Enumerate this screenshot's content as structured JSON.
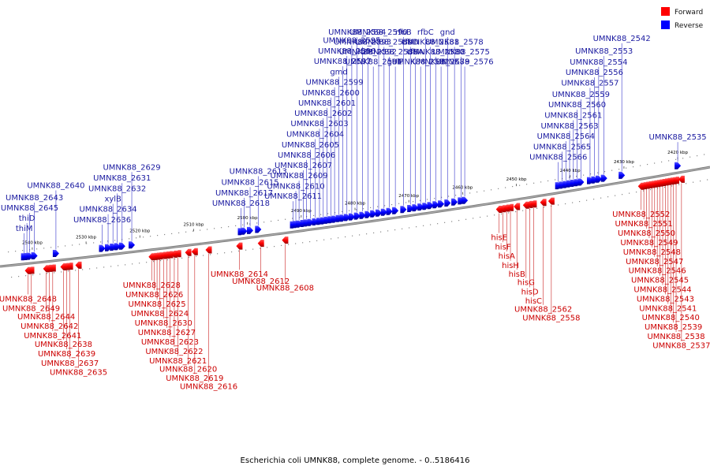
{
  "caption": "Escherichia coli UMNK88, complete genome. - 0..5186416",
  "legend": {
    "forward": {
      "label": "Forward",
      "color": "#ff0000"
    },
    "reverse": {
      "label": "Reverse",
      "color": "#0000ff"
    }
  },
  "ticks": [
    {
      "label": "2540 kbp",
      "pos": 2540
    },
    {
      "label": "2530 kbp",
      "pos": 2530
    },
    {
      "label": "2520 kbp",
      "pos": 2520
    },
    {
      "label": "2510 kbp",
      "pos": 2510
    },
    {
      "label": "2500 kbp",
      "pos": 2500
    },
    {
      "label": "2490 kbp",
      "pos": 2490
    },
    {
      "label": "2480 kbp",
      "pos": 2480
    },
    {
      "label": "2470 kbp",
      "pos": 2470
    },
    {
      "label": "2460 kbp",
      "pos": 2460
    },
    {
      "label": "2450 kbp",
      "pos": 2450
    },
    {
      "label": "2440 kbp",
      "pos": 2440
    },
    {
      "label": "2430 kbp",
      "pos": 2430
    },
    {
      "label": "2420 kbp",
      "pos": 2420
    }
  ],
  "reverse_genes": [
    {
      "name": "thiM",
      "pos": 2541.5
    },
    {
      "name": "thiD",
      "pos": 2541.0
    },
    {
      "name": "UMNK88_2645",
      "pos": 2540.5
    },
    {
      "name": "UMNK88_2643",
      "pos": 2539.6
    },
    {
      "name": "UMNK88_2640",
      "pos": 2535.6
    },
    {
      "name": "UMNK88_2636",
      "pos": 2527.0
    },
    {
      "name": "UMNK88_2634",
      "pos": 2525.9
    },
    {
      "name": "xylB",
      "pos": 2525.0
    },
    {
      "name": "UMNK88_2632",
      "pos": 2524.2
    },
    {
      "name": "UMNK88_2631",
      "pos": 2523.3
    },
    {
      "name": "UMNK88_2629",
      "pos": 2521.5
    },
    {
      "name": "UMNK88_2618",
      "pos": 2501.2
    },
    {
      "name": "UMNK88_2617",
      "pos": 2500.6
    },
    {
      "name": "UMNK88_2615",
      "pos": 2499.5
    },
    {
      "name": "UMNK88_2613",
      "pos": 2498.0
    },
    {
      "name": "UMNK88_2611",
      "pos": 2491.5
    },
    {
      "name": "UMNK88_2610",
      "pos": 2491.0
    },
    {
      "name": "UMNK88_2609",
      "pos": 2490.4
    },
    {
      "name": "UMNK88_2607",
      "pos": 2489.6
    },
    {
      "name": "UMNK88_2606",
      "pos": 2489.0
    },
    {
      "name": "UMNK88_2605",
      "pos": 2488.3
    },
    {
      "name": "UMNK88_2604",
      "pos": 2487.4
    },
    {
      "name": "UMNK88_2603",
      "pos": 2486.6
    },
    {
      "name": "UMNK88_2602",
      "pos": 2485.9
    },
    {
      "name": "UMNK88_2601",
      "pos": 2485.2
    },
    {
      "name": "UMNK88_2600",
      "pos": 2484.5
    },
    {
      "name": "UMNK88_2599",
      "pos": 2483.8
    },
    {
      "name": "gmd",
      "pos": 2483.0
    },
    {
      "name": "UMNK88_2597",
      "pos": 2482.3
    },
    {
      "name": "UMNK88_2596",
      "pos": 2481.5
    },
    {
      "name": "UMNK88_2595",
      "pos": 2480.6
    },
    {
      "name": "UMNK88_2594",
      "pos": 2479.6
    },
    {
      "name": "UMNK88_2593",
      "pos": 2478.6
    },
    {
      "name": "UMNK88_2592",
      "pos": 2477.6
    },
    {
      "name": "UMNK88_2591",
      "pos": 2476.6
    },
    {
      "name": "UMNK88_2590",
      "pos": 2475.6
    },
    {
      "name": "UMNK88_2589",
      "pos": 2474.6
    },
    {
      "name": "UMNK88_2588",
      "pos": 2473.6
    },
    {
      "name": "galF",
      "pos": 2472.5
    },
    {
      "name": "rfbB",
      "pos": 2471.0
    },
    {
      "name": "rfbD",
      "pos": 2469.7
    },
    {
      "name": "rfbA",
      "pos": 2468.8
    },
    {
      "name": "UMNK88_2582",
      "pos": 2467.8
    },
    {
      "name": "rfbC",
      "pos": 2466.9
    },
    {
      "name": "UMNK88_2581",
      "pos": 2466.0
    },
    {
      "name": "UMNK88_2580",
      "pos": 2465.0
    },
    {
      "name": "UMNK88_2579",
      "pos": 2464.0
    },
    {
      "name": "gnd",
      "pos": 2462.8
    },
    {
      "name": "UMNK88_2578",
      "pos": 2461.5
    },
    {
      "name": "UMNK88_2575",
      "pos": 2460.3
    },
    {
      "name": "UMNK88_2576",
      "pos": 2459.6
    },
    {
      "name": "UMNK88_2566",
      "pos": 2442.2
    },
    {
      "name": "UMNK88_2565",
      "pos": 2441.5
    },
    {
      "name": "UMNK88_2564",
      "pos": 2440.8
    },
    {
      "name": "UMNK88_2563",
      "pos": 2440.1
    },
    {
      "name": "UMNK88_2561",
      "pos": 2439.4
    },
    {
      "name": "UMNK88_2560",
      "pos": 2438.7
    },
    {
      "name": "UMNK88_2559",
      "pos": 2438.0
    },
    {
      "name": "UMNK88_2557",
      "pos": 2436.3
    },
    {
      "name": "UMNK88_2556",
      "pos": 2435.5
    },
    {
      "name": "UMNK88_2554",
      "pos": 2434.7
    },
    {
      "name": "UMNK88_2553",
      "pos": 2433.7
    },
    {
      "name": "UMNK88_2542",
      "pos": 2430.4
    },
    {
      "name": "UMNK88_2535",
      "pos": 2420.0
    }
  ],
  "forward_genes": [
    {
      "name": "UMNK88_2648",
      "pos": 2540.8
    },
    {
      "name": "UMNK88_2649",
      "pos": 2540.2
    },
    {
      "name": "UMNK88_2644",
      "pos": 2537.4
    },
    {
      "name": "UMNK88_2642",
      "pos": 2536.8
    },
    {
      "name": "UMNK88_2641",
      "pos": 2536.2
    },
    {
      "name": "UMNK88_2638",
      "pos": 2534.2
    },
    {
      "name": "UMNK88_2639",
      "pos": 2533.6
    },
    {
      "name": "UMNK88_2637",
      "pos": 2533.0
    },
    {
      "name": "UMNK88_2635",
      "pos": 2531.4
    },
    {
      "name": "UMNK88_2628",
      "pos": 2517.8
    },
    {
      "name": "UMNK88_2626",
      "pos": 2517.3
    },
    {
      "name": "UMNK88_2625",
      "pos": 2516.8
    },
    {
      "name": "UMNK88_2624",
      "pos": 2516.3
    },
    {
      "name": "UMNK88_2630",
      "pos": 2515.6
    },
    {
      "name": "UMNK88_2627",
      "pos": 2515.0
    },
    {
      "name": "UMNK88_2623",
      "pos": 2514.4
    },
    {
      "name": "UMNK88_2622",
      "pos": 2513.6
    },
    {
      "name": "UMNK88_2621",
      "pos": 2512.9
    },
    {
      "name": "UMNK88_2620",
      "pos": 2511.0
    },
    {
      "name": "UMNK88_2619",
      "pos": 2509.8
    },
    {
      "name": "UMNK88_2616",
      "pos": 2507.2
    },
    {
      "name": "UMNK88_2614",
      "pos": 2501.5
    },
    {
      "name": "UMNK88_2612",
      "pos": 2497.5
    },
    {
      "name": "UMNK88_2608",
      "pos": 2493.0
    },
    {
      "name": "hisE",
      "pos": 2453.2
    },
    {
      "name": "hisF",
      "pos": 2452.5
    },
    {
      "name": "hisA",
      "pos": 2451.8
    },
    {
      "name": "hisH",
      "pos": 2451.1
    },
    {
      "name": "hisB",
      "pos": 2449.9
    },
    {
      "name": "hisG",
      "pos": 2448.2
    },
    {
      "name": "hisD",
      "pos": 2447.5
    },
    {
      "name": "hisC",
      "pos": 2446.8
    },
    {
      "name": "UMNK88_2562",
      "pos": 2445.0
    },
    {
      "name": "UMNK88_2558",
      "pos": 2443.5
    },
    {
      "name": "UMNK88_2552",
      "pos": 2426.8
    },
    {
      "name": "UMNK88_2551",
      "pos": 2426.3
    },
    {
      "name": "UMNK88_2550",
      "pos": 2425.8
    },
    {
      "name": "UMNK88_2549",
      "pos": 2425.3
    },
    {
      "name": "UMNK88_2548",
      "pos": 2424.8
    },
    {
      "name": "UMNK88_2547",
      "pos": 2424.3
    },
    {
      "name": "UMNK88_2546",
      "pos": 2423.8
    },
    {
      "name": "UMNK88_2545",
      "pos": 2423.3
    },
    {
      "name": "UMNK88_2544",
      "pos": 2422.8
    },
    {
      "name": "UMNK88_2543",
      "pos": 2422.3
    },
    {
      "name": "UMNK88_2541",
      "pos": 2421.8
    },
    {
      "name": "UMNK88_2540",
      "pos": 2421.3
    },
    {
      "name": "UMNK88_2539",
      "pos": 2420.8
    },
    {
      "name": "UMNK88_2538",
      "pos": 2420.3
    },
    {
      "name": "UMNK88_2537",
      "pos": 2419.3
    }
  ]
}
